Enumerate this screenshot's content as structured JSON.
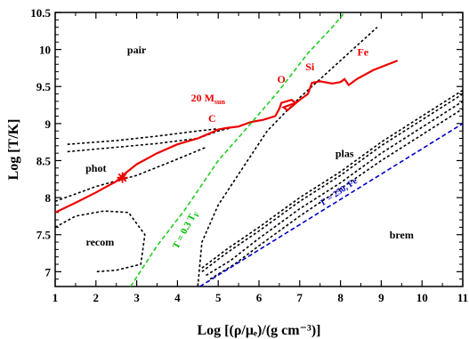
{
  "chart_data": {
    "type": "line",
    "title": "",
    "xlabel": "Log [(ρ/μₑ)/(g cm⁻³)]",
    "ylabel": "Log [T/K]",
    "xlim": [
      1,
      11
    ],
    "ylim": [
      6.8,
      10.5
    ],
    "x_ticks": [
      "1",
      "2",
      "3",
      "4",
      "5",
      "6",
      "7",
      "8",
      "9",
      "10",
      "11"
    ],
    "y_ticks": [
      "7",
      "7.5",
      "8",
      "8.5",
      "9",
      "9.5",
      "10",
      "10.5"
    ],
    "grid": false,
    "colors": {
      "track": "#ee0000",
      "boundary": "#000000",
      "fermi": "#22cc22",
      "gamma": "#0000cc"
    },
    "regions": [
      {
        "label": "pair",
        "x": 3.0,
        "y": 9.95
      },
      {
        "label": "phot",
        "x": 2.0,
        "y": 8.35
      },
      {
        "label": "recom",
        "x": 2.1,
        "y": 7.35
      },
      {
        "label": "plas",
        "x": 8.1,
        "y": 8.55
      },
      {
        "label": "brem",
        "x": 9.5,
        "y": 7.45
      }
    ],
    "series": [
      {
        "name": "20 M_sun",
        "style": "solid",
        "points": [
          [
            1.0,
            7.8
          ],
          [
            1.5,
            7.93
          ],
          [
            2.0,
            8.07
          ],
          [
            2.5,
            8.22
          ],
          [
            2.7,
            8.32
          ],
          [
            3.0,
            8.45
          ],
          [
            3.5,
            8.6
          ],
          [
            4.0,
            8.72
          ],
          [
            4.5,
            8.8
          ],
          [
            4.8,
            8.87
          ],
          [
            5.0,
            8.92
          ],
          [
            5.2,
            8.94
          ],
          [
            5.5,
            8.96
          ],
          [
            5.8,
            9.02
          ],
          [
            6.1,
            9.05
          ],
          [
            6.4,
            9.1
          ],
          [
            6.5,
            9.2
          ],
          [
            6.55,
            9.28
          ],
          [
            6.8,
            9.32
          ],
          [
            6.9,
            9.28
          ],
          [
            6.6,
            9.22
          ],
          [
            6.7,
            9.18
          ],
          [
            7.0,
            9.32
          ],
          [
            7.2,
            9.4
          ],
          [
            7.3,
            9.55
          ],
          [
            7.5,
            9.57
          ],
          [
            7.8,
            9.54
          ],
          [
            8.0,
            9.56
          ],
          [
            8.1,
            9.6
          ],
          [
            8.2,
            9.52
          ],
          [
            8.4,
            9.6
          ],
          [
            8.8,
            9.72
          ],
          [
            9.4,
            9.85
          ]
        ]
      },
      {
        "name": "T = 0.3 T_F",
        "style": "dashed",
        "points": [
          [
            2.85,
            6.8
          ],
          [
            3.5,
            7.35
          ],
          [
            4.2,
            7.85
          ],
          [
            5.0,
            8.5
          ],
          [
            5.8,
            9.0
          ],
          [
            6.5,
            9.45
          ],
          [
            7.2,
            9.95
          ],
          [
            7.8,
            10.3
          ],
          [
            8.1,
            10.5
          ]
        ]
      },
      {
        "name": "Γ = 250, Fe",
        "style": "dashed",
        "points": [
          [
            4.55,
            6.8
          ],
          [
            11.0,
            9.0
          ]
        ]
      }
    ],
    "boundaries": [
      [
        [
          1.3,
          8.62
        ],
        [
          2.5,
          8.68
        ],
        [
          3.5,
          8.73
        ],
        [
          4.5,
          8.8
        ],
        [
          5.0,
          8.9
        ],
        [
          5.3,
          8.94
        ]
      ],
      [
        [
          1.3,
          8.72
        ],
        [
          2.5,
          8.77
        ],
        [
          3.5,
          8.83
        ],
        [
          4.5,
          8.9
        ],
        [
          5.0,
          8.93
        ]
      ],
      [
        [
          1.0,
          7.95
        ],
        [
          2.0,
          8.15
        ],
        [
          3.0,
          8.3
        ],
        [
          4.0,
          8.52
        ],
        [
          4.7,
          8.68
        ]
      ],
      [
        [
          1.0,
          7.6
        ],
        [
          1.5,
          7.75
        ],
        [
          2.2,
          7.82
        ],
        [
          2.8,
          7.8
        ],
        [
          3.2,
          7.5
        ],
        [
          3.1,
          7.1
        ],
        [
          2.5,
          7.02
        ],
        [
          2.0,
          7.0
        ]
      ],
      [
        [
          4.5,
          6.8
        ],
        [
          4.6,
          7.4
        ],
        [
          5.0,
          7.9
        ],
        [
          5.6,
          8.4
        ],
        [
          6.2,
          8.9
        ],
        [
          7.0,
          9.35
        ],
        [
          8.0,
          9.85
        ],
        [
          8.9,
          10.3
        ]
      ],
      [
        [
          4.6,
          7.05
        ],
        [
          5.2,
          7.3
        ],
        [
          6.0,
          7.6
        ],
        [
          7.0,
          8.0
        ],
        [
          8.0,
          8.35
        ],
        [
          9.0,
          8.75
        ],
        [
          10.0,
          9.1
        ],
        [
          11.0,
          9.45
        ]
      ],
      [
        [
          4.6,
          7.0
        ],
        [
          5.2,
          7.25
        ],
        [
          6.0,
          7.55
        ],
        [
          7.0,
          7.95
        ],
        [
          8.0,
          8.3
        ],
        [
          9.0,
          8.7
        ],
        [
          10.0,
          9.05
        ],
        [
          11.0,
          9.4
        ]
      ],
      [
        [
          4.7,
          6.95
        ],
        [
          5.3,
          7.15
        ],
        [
          6.0,
          7.45
        ],
        [
          7.0,
          7.85
        ],
        [
          8.0,
          8.2
        ],
        [
          9.0,
          8.6
        ],
        [
          10.0,
          8.95
        ],
        [
          11.0,
          9.3
        ]
      ],
      [
        [
          4.8,
          6.9
        ],
        [
          5.4,
          7.1
        ],
        [
          6.0,
          7.35
        ],
        [
          7.0,
          7.75
        ],
        [
          8.0,
          8.12
        ],
        [
          9.0,
          8.5
        ],
        [
          10.0,
          8.85
        ],
        [
          11.0,
          9.2
        ]
      ]
    ],
    "annotations": [
      {
        "text": "Fe",
        "x": 8.55,
        "y": 9.92,
        "color": "red"
      },
      {
        "text": "Si",
        "x": 7.25,
        "y": 9.72,
        "color": "red"
      },
      {
        "text": "O",
        "x": 6.55,
        "y": 9.55,
        "color": "red"
      },
      {
        "text": "20 M",
        "sub": "sun",
        "x": 4.75,
        "y": 9.3,
        "color": "red"
      },
      {
        "text": "C",
        "x": 4.85,
        "y": 9.02,
        "color": "red"
      },
      {
        "text": "T = 0.3 T",
        "sub": "F",
        "x": 4.25,
        "y": 7.55,
        "rotate": -62,
        "color": "green"
      },
      {
        "text": "Γ = 250, Fe",
        "x": 8.0,
        "y": 8.05,
        "rotate": -34,
        "color": "blue"
      }
    ],
    "markers": [
      {
        "symbol": "star",
        "x": 2.65,
        "y": 8.27,
        "color": "red"
      }
    ]
  }
}
